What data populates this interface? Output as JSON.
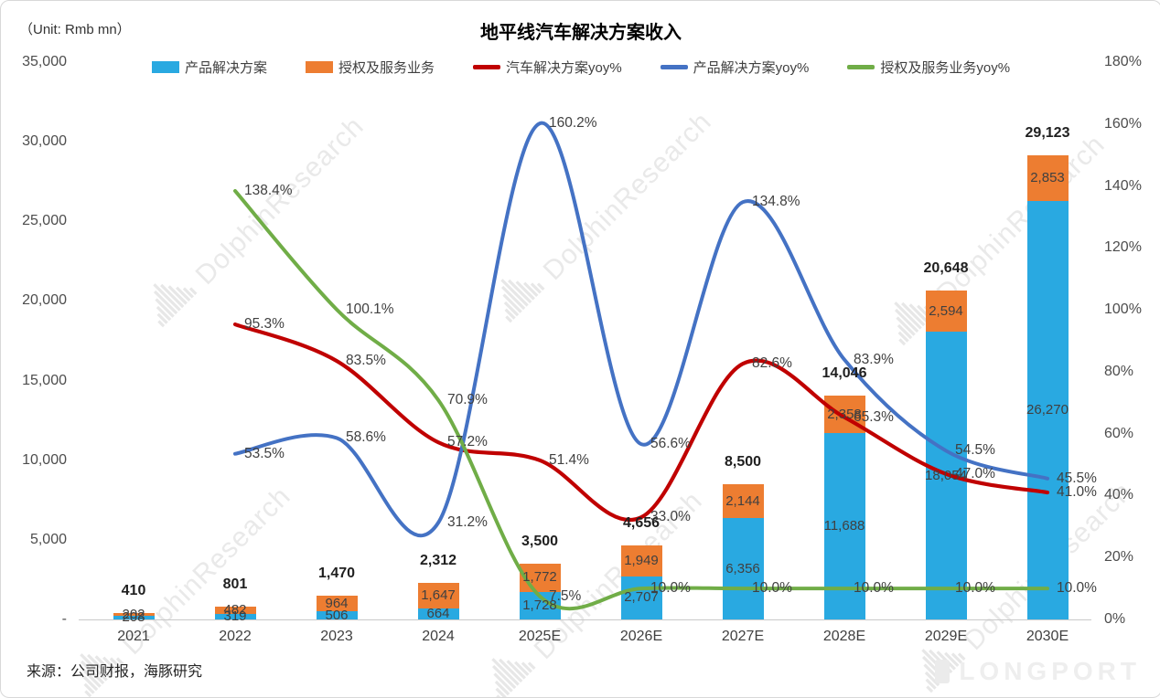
{
  "header": {
    "unit_label": "（Unit: Rmb mn）",
    "title": "地平线汽车解决方案收入"
  },
  "footer": {
    "source": "来源：公司财报，海豚研究",
    "brand": "LONGPORT"
  },
  "watermark": {
    "text": "DolphinResearch"
  },
  "legend": [
    {
      "label": "产品解决方案",
      "swatch": "bar",
      "color": "#29A9E1"
    },
    {
      "label": "授权及服务业务",
      "swatch": "bar",
      "color": "#ED7D31"
    },
    {
      "label": "汽车解决方案yoy%",
      "swatch": "line",
      "color": "#C00000"
    },
    {
      "label": "产品解决方案yoy%",
      "swatch": "line",
      "color": "#4472C4"
    },
    {
      "label": "授权及服务业务yoy%",
      "swatch": "line",
      "color": "#70AD47"
    }
  ],
  "chart_data": {
    "type": "combo(stacked-bar+smooth-line)",
    "title": "地平线汽车解决方案收入",
    "unit": "Rmb mn",
    "categories": [
      "2021",
      "2022",
      "2023",
      "2024",
      "2025E",
      "2026E",
      "2027E",
      "2028E",
      "2029E",
      "2030E"
    ],
    "bar_series": [
      {
        "name": "产品解决方案",
        "color": "#29A9E1",
        "axis": "left",
        "stack_order": 0,
        "values": [
          208,
          319,
          506,
          664,
          1728,
          2707,
          6356,
          11688,
          18054,
          26270
        ],
        "labels": [
          "208",
          "319",
          "506",
          "664",
          "1,728",
          "2,707",
          "6,356",
          "11,688",
          "18,054",
          "26,270"
        ]
      },
      {
        "name": "授权及服务业务",
        "color": "#ED7D31",
        "axis": "left",
        "stack_order": 1,
        "values": [
          202,
          482,
          964,
          1647,
          1772,
          1949,
          2144,
          2358,
          2594,
          2853
        ],
        "labels": [
          "202",
          "482",
          "964",
          "1,647",
          "1,772",
          "1,949",
          "2,144",
          "2,358",
          "2,594",
          "2,853"
        ]
      }
    ],
    "totals": {
      "values": [
        410,
        801,
        1470,
        2312,
        3500,
        4656,
        8500,
        14046,
        20648,
        29123
      ],
      "labels": [
        "410",
        "801",
        "1,470",
        "2,312",
        "3,500",
        "4,656",
        "8,500",
        "14,046",
        "20,648",
        "29,123"
      ]
    },
    "line_series": [
      {
        "name": "汽车解决方案yoy%",
        "color": "#C00000",
        "axis": "right",
        "values": [
          null,
          95.3,
          83.5,
          57.2,
          51.4,
          33.0,
          82.6,
          65.3,
          47.0,
          41.0
        ],
        "labels": [
          "",
          "95.3%",
          "83.5%",
          "57.2%",
          "51.4%",
          "33.0%",
          "82.6%",
          "65.3%",
          "47.0%",
          "41.0%"
        ]
      },
      {
        "name": "产品解决方案yoy%",
        "color": "#4472C4",
        "axis": "right",
        "values": [
          null,
          53.5,
          58.6,
          31.2,
          160.2,
          56.6,
          134.8,
          83.9,
          54.5,
          45.5
        ],
        "labels": [
          "",
          "53.5%",
          "58.6%",
          "31.2%",
          "160.2%",
          "56.6%",
          "134.8%",
          "83.9%",
          "54.5%",
          "45.5%"
        ]
      },
      {
        "name": "授权及服务业务yoy%",
        "color": "#70AD47",
        "axis": "right",
        "values": [
          null,
          138.4,
          100.1,
          70.9,
          7.5,
          10.0,
          10.0,
          10.0,
          10.0,
          10.0
        ],
        "labels": [
          "",
          "138.4%",
          "100.1%",
          "70.9%",
          "7.5%",
          "10.0%",
          "10.0%",
          "10.0%",
          "10.0%",
          "10.0%"
        ]
      }
    ],
    "axes": {
      "left": {
        "min": 0,
        "max": 35000,
        "ticks": [
          "35,000",
          "30,000",
          "25,000",
          "20,000",
          "15,000",
          "10,000",
          "5,000",
          "-"
        ]
      },
      "right": {
        "min": 0,
        "max": 180,
        "ticks": [
          "180%",
          "160%",
          "140%",
          "120%",
          "100%",
          "80%",
          "60%",
          "40%",
          "20%",
          "0%"
        ]
      }
    },
    "grid": false,
    "legend_position": "top"
  }
}
